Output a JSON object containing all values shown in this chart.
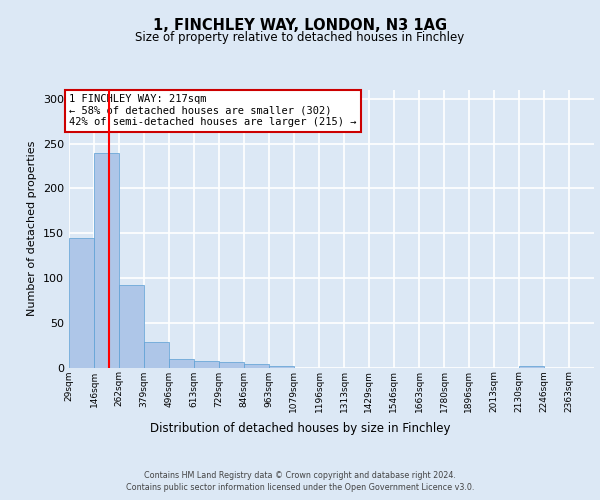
{
  "title_line1": "1, FINCHLEY WAY, LONDON, N3 1AG",
  "title_line2": "Size of property relative to detached houses in Finchley",
  "xlabel": "Distribution of detached houses by size in Finchley",
  "ylabel": "Number of detached properties",
  "bar_values": [
    145,
    240,
    92,
    29,
    9,
    7,
    6,
    4,
    2,
    0,
    0,
    0,
    0,
    0,
    0,
    0,
    0,
    0,
    2,
    0,
    0
  ],
  "bin_edges": [
    29,
    146,
    262,
    379,
    496,
    613,
    729,
    846,
    963,
    1079,
    1196,
    1313,
    1429,
    1546,
    1663,
    1780,
    1896,
    2013,
    2130,
    2246,
    2363,
    2480
  ],
  "bin_labels": [
    "29sqm",
    "146sqm",
    "262sqm",
    "379sqm",
    "496sqm",
    "613sqm",
    "729sqm",
    "846sqm",
    "963sqm",
    "1079sqm",
    "1196sqm",
    "1313sqm",
    "1429sqm",
    "1546sqm",
    "1663sqm",
    "1780sqm",
    "1896sqm",
    "2013sqm",
    "2130sqm",
    "2246sqm",
    "2363sqm"
  ],
  "bar_color": "#aec6e8",
  "bar_edge_color": "#5a9fd4",
  "red_line_x": 217,
  "annotation_text": "1 FINCHLEY WAY: 217sqm\n← 58% of detached houses are smaller (302)\n42% of semi-detached houses are larger (215) →",
  "annotation_box_color": "#ffffff",
  "annotation_box_edge": "#cc0000",
  "ylim": [
    0,
    310
  ],
  "yticks": [
    0,
    50,
    100,
    150,
    200,
    250,
    300
  ],
  "footer_line1": "Contains HM Land Registry data © Crown copyright and database right 2024.",
  "footer_line2": "Contains public sector information licensed under the Open Government Licence v3.0.",
  "background_color": "#dce8f5",
  "grid_color": "#ffffff"
}
